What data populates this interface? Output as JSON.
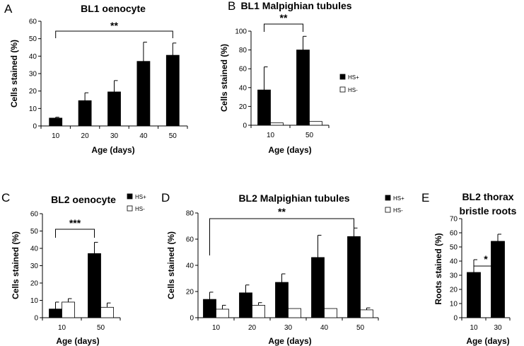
{
  "colors": {
    "hs_plus": "#000000",
    "hs_minus": "#ffffff",
    "axis": "#000000"
  },
  "chart_data": [
    {
      "panel": "A",
      "type": "bar",
      "title": "BL1 oenocyte",
      "xlabel": "Age (days)",
      "ylabel": "Cells stained (%)",
      "categories": [
        "10",
        "20",
        "30",
        "40",
        "50"
      ],
      "ylim": [
        0,
        60
      ],
      "yticks": [
        0,
        10,
        20,
        30,
        40,
        50,
        60
      ],
      "series": [
        {
          "name": "HS+",
          "values": [
            4.5,
            14.5,
            19.5,
            37,
            40.5
          ],
          "errors": [
            0.5,
            4.5,
            6.5,
            11,
            7
          ]
        }
      ],
      "legend": [],
      "annotations": [
        {
          "text": "**",
          "from": 0,
          "to": 4
        }
      ]
    },
    {
      "panel": "B",
      "type": "bar",
      "title": "BL1 Malpighian tubules",
      "xlabel": "Age (days)",
      "ylabel": "Cells stained (%)",
      "categories": [
        "10",
        "50"
      ],
      "ylim": [
        0,
        100
      ],
      "yticks": [
        0,
        20,
        40,
        60,
        80,
        100
      ],
      "series": [
        {
          "name": "HS+",
          "values": [
            37.5,
            80
          ],
          "errors": [
            24.5,
            14.5
          ]
        },
        {
          "name": "HS-",
          "values": [
            2.5,
            4
          ],
          "errors": [
            0,
            0
          ]
        }
      ],
      "legend": [
        "HS+",
        "HS-"
      ],
      "annotations": [
        {
          "text": "**",
          "from": 0,
          "to": 1
        }
      ]
    },
    {
      "panel": "C",
      "type": "bar",
      "title": "BL2 oenocyte",
      "xlabel": "Age (days)",
      "ylabel": "Cells stained (%)",
      "categories": [
        "10",
        "50"
      ],
      "ylim": [
        0,
        60
      ],
      "yticks": [
        0,
        10,
        20,
        30,
        40,
        50,
        60
      ],
      "series": [
        {
          "name": "HS+",
          "values": [
            5,
            37
          ],
          "errors": [
            4,
            6.5
          ]
        },
        {
          "name": "HS-",
          "values": [
            9,
            6
          ],
          "errors": [
            2,
            2.5
          ]
        }
      ],
      "legend": [
        "HS+",
        "HS-"
      ],
      "annotations": [
        {
          "text": "***",
          "from": 0,
          "to": 1
        }
      ]
    },
    {
      "panel": "D",
      "type": "bar",
      "title": "BL2 Malpighian tubules",
      "xlabel": "Age (days)",
      "ylabel": "Cells stained (%)",
      "categories": [
        "10",
        "20",
        "30",
        "40",
        "50"
      ],
      "ylim": [
        0,
        80
      ],
      "yticks": [
        0,
        20,
        40,
        60,
        80
      ],
      "series": [
        {
          "name": "HS+",
          "values": [
            14,
            19,
            27,
            46,
            62
          ],
          "errors": [
            5.5,
            6,
            6.5,
            17,
            6.5
          ]
        },
        {
          "name": "HS-",
          "values": [
            6.5,
            9.5,
            7,
            7,
            6
          ],
          "errors": [
            3,
            2,
            0,
            0,
            1.5
          ]
        }
      ],
      "legend": [
        "HS+",
        "HS-"
      ],
      "annotations": [
        {
          "text": "**",
          "from": 0,
          "to": 4
        }
      ]
    },
    {
      "panel": "E",
      "type": "bar",
      "title": "BL2 thorax bristle roots",
      "title_lines": [
        "BL2 thorax",
        "bristle roots"
      ],
      "xlabel": "Age (days)",
      "ylabel": "Roots stained (%)",
      "categories": [
        "10",
        "30"
      ],
      "ylim": [
        0,
        70
      ],
      "yticks": [
        0,
        10,
        20,
        30,
        40,
        50,
        60,
        70
      ],
      "series": [
        {
          "name": "HS+",
          "values": [
            32,
            54
          ],
          "errors": [
            9,
            5
          ]
        }
      ],
      "legend": [],
      "annotations": [
        {
          "text": "*",
          "from": 0,
          "to": 1
        }
      ]
    }
  ]
}
